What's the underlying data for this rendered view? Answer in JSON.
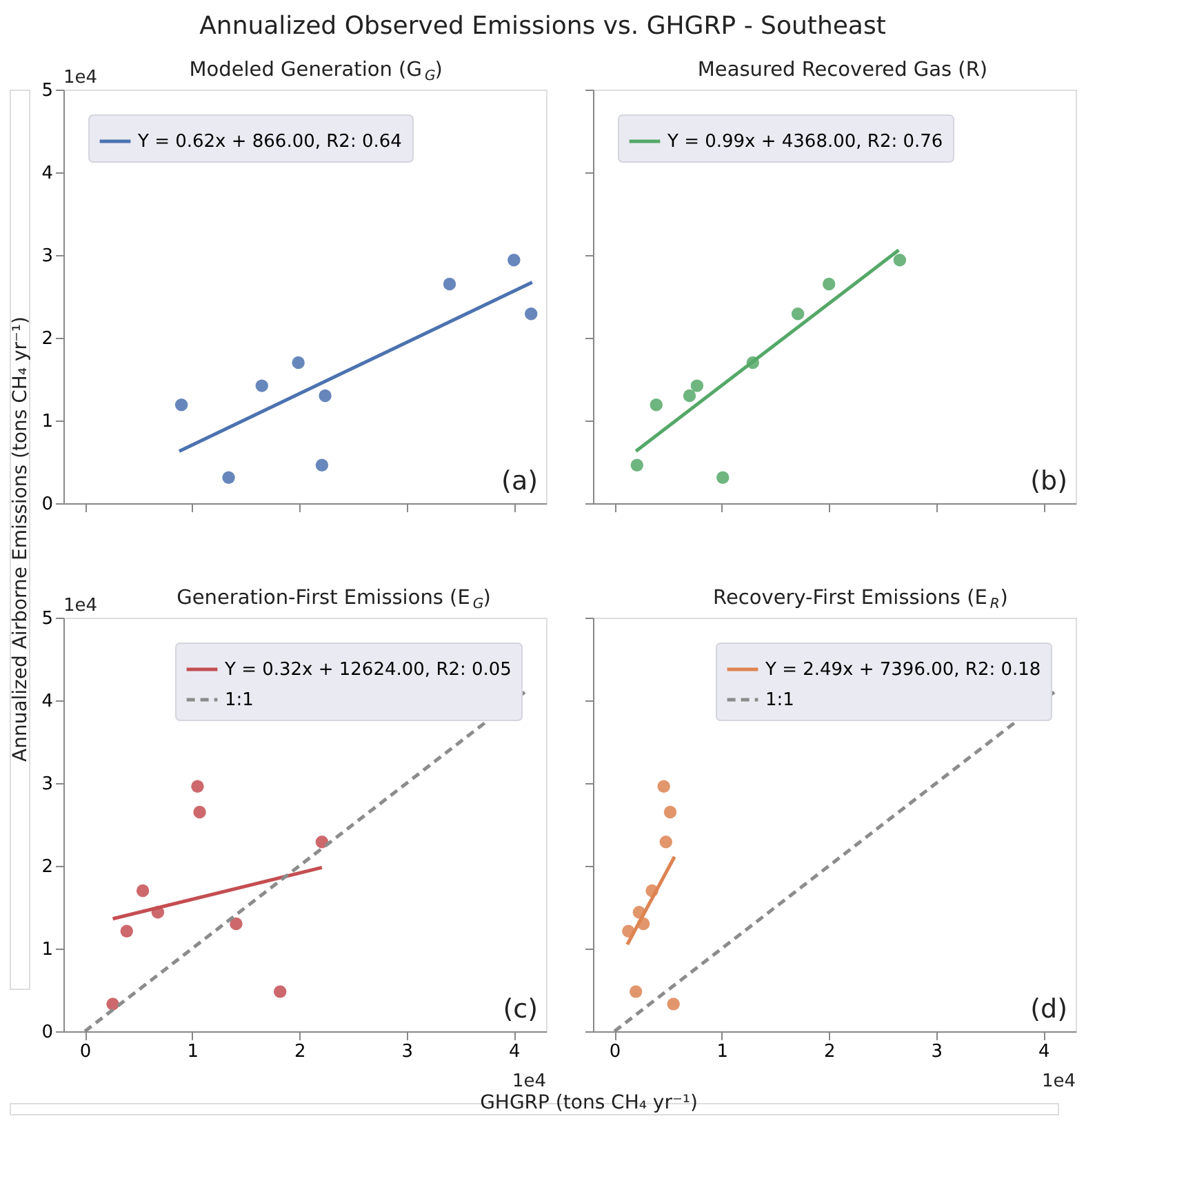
{
  "chart_data": [
    {
      "type": "scatter",
      "title": "Modeled Generation (G$_{G}$)",
      "ylabel": "Annualized Airborne Emissions (tons CH₄ yr⁻¹)",
      "annotations": [
        "Annualized Observed Emissions vs. GHGRP - Southeast",
        "1e4",
        "(a)"
      ],
      "xlim": [
        -0.2,
        4.3
      ],
      "ylim": [
        0,
        5
      ],
      "xticks": [
        0,
        1,
        2,
        3,
        4
      ],
      "yticks": [
        0,
        1,
        2,
        3,
        4,
        5
      ],
      "tick_labels": "y",
      "legend": "top left",
      "grid": false,
      "series": [
        {
          "type": "scatter",
          "marker": "circle",
          "color": "#4c72b0",
          "x": [
            0.9,
            1.34,
            1.65,
            1.99,
            2.24,
            2.21,
            3.4,
            4.0,
            4.16
          ],
          "values": [
            1.19,
            0.31,
            1.42,
            1.7,
            1.3,
            0.46,
            2.65,
            2.94,
            2.29
          ]
        },
        {
          "type": "line",
          "name": "Y = 0.62x + 866.00, R2: 0.64",
          "color": "#4c72b0",
          "line_style": "solid",
          "x": [
            0.88,
            4.17
          ],
          "values": [
            0.63,
            2.67
          ]
        }
      ]
    },
    {
      "type": "scatter",
      "title": "Measured Recovered Gas (R)",
      "annotations": [
        "(b)"
      ],
      "xlim": [
        -0.2,
        4.3
      ],
      "ylim": [
        0,
        5
      ],
      "xticks": [
        0,
        1,
        2,
        3,
        4
      ],
      "yticks": [
        0,
        1,
        2,
        3,
        4,
        5
      ],
      "tick_labels": false,
      "legend": "top left",
      "grid": false,
      "series": [
        {
          "type": "scatter",
          "marker": "circle",
          "color": "#55a868",
          "x": [
            0.21,
            0.39,
            0.7,
            0.77,
            1.29,
            1.71,
            2.0,
            2.66,
            1.01
          ],
          "values": [
            0.46,
            1.19,
            1.3,
            1.42,
            1.7,
            2.29,
            2.65,
            2.94,
            0.31
          ]
        },
        {
          "type": "line",
          "name": "Y = 0.99x + 4368.00, R2: 0.76",
          "color": "#55a868",
          "line_style": "solid",
          "x": [
            0.2,
            2.65
          ],
          "values": [
            0.63,
            3.06
          ]
        }
      ]
    },
    {
      "type": "scatter",
      "title": "Generation-First Emissions (E$_{G}$)",
      "xlabel": "GHGRP (tons CH₄ yr⁻¹)",
      "annotations": [
        "1e4",
        "1e4",
        "(c)"
      ],
      "xlim": [
        -0.2,
        4.3
      ],
      "ylim": [
        0,
        5
      ],
      "xticks": [
        0,
        1,
        2,
        3,
        4
      ],
      "yticks": [
        0,
        1,
        2,
        3,
        4,
        5
      ],
      "legend": "top right",
      "grid": false,
      "series": [
        {
          "type": "scatter",
          "marker": "circle",
          "color": "#c44e52",
          "x": [
            0.26,
            0.39,
            0.54,
            0.68,
            1.05,
            1.07,
            1.41,
            1.82,
            2.21
          ],
          "values": [
            0.33,
            1.21,
            1.7,
            1.44,
            2.96,
            2.65,
            1.3,
            0.48,
            2.29
          ]
        },
        {
          "type": "line",
          "name": "Y = 0.32x + 12624.00, R2: 0.05",
          "color": "#c44e52",
          "line_style": "solid",
          "x": [
            0.26,
            2.21
          ],
          "values": [
            1.36,
            1.98
          ]
        },
        {
          "type": "line",
          "name": "1:1",
          "color": "#8c8c8c",
          "line_style": "dashed",
          "x": [
            0,
            4.1
          ],
          "values": [
            0,
            4.1
          ]
        }
      ]
    },
    {
      "type": "scatter",
      "title": "Recovery-First Emissions (E$_{R}$)",
      "annotations": [
        "1e4",
        "(d)"
      ],
      "xlim": [
        -0.2,
        4.3
      ],
      "ylim": [
        0,
        5
      ],
      "xticks": [
        0,
        1,
        2,
        3,
        4
      ],
      "yticks": [
        0,
        1,
        2,
        3,
        4,
        5
      ],
      "tick_labels": "x",
      "legend": "top right",
      "grid": false,
      "series": [
        {
          "type": "scatter",
          "marker": "circle",
          "color": "#dd8452",
          "x": [
            0.13,
            0.2,
            0.23,
            0.27,
            0.35,
            0.48,
            0.46,
            0.52,
            0.55
          ],
          "values": [
            1.21,
            0.48,
            1.44,
            1.3,
            1.7,
            2.29,
            2.96,
            2.65,
            0.33
          ]
        },
        {
          "type": "line",
          "name": "Y = 2.49x + 7396.00, R2: 0.18",
          "color": "#dd8452",
          "line_style": "solid",
          "x": [
            0.12,
            0.56
          ],
          "values": [
            1.05,
            2.11
          ]
        },
        {
          "type": "line",
          "name": "1:1",
          "color": "#8c8c8c",
          "line_style": "dashed",
          "x": [
            0,
            4.1
          ],
          "values": [
            0,
            4.1
          ]
        }
      ]
    }
  ]
}
